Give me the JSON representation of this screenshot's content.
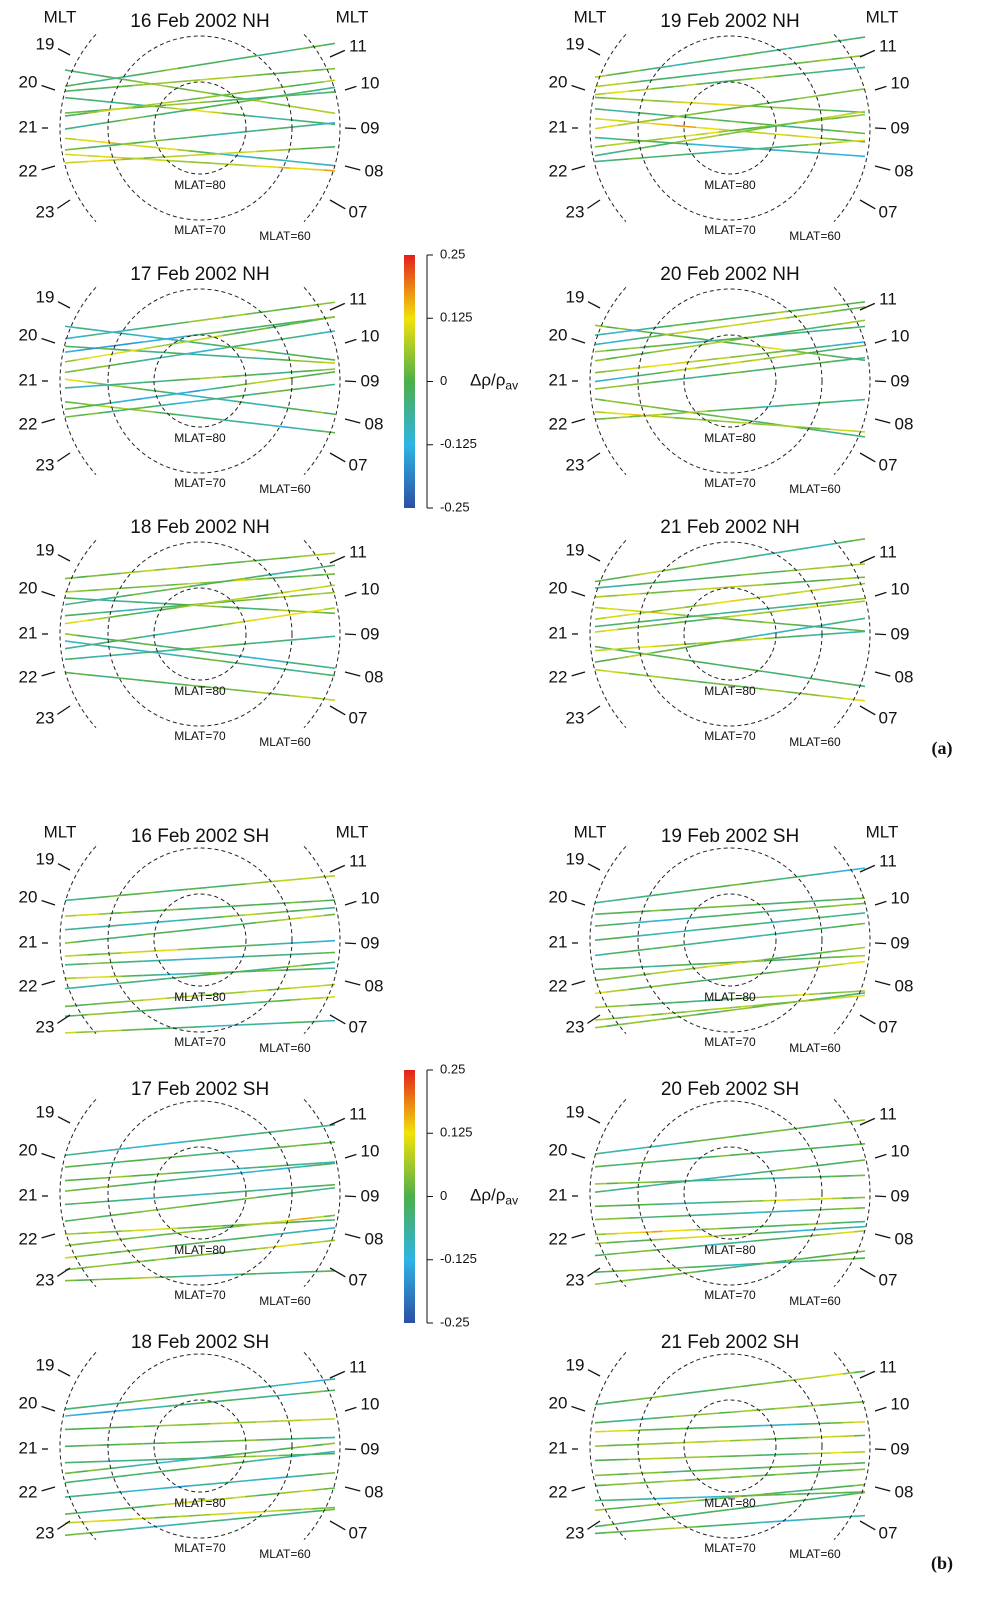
{
  "parts": [
    {
      "label": "(a)",
      "panels": [
        {
          "title": "16 Feb 2002 NH"
        },
        {
          "title": "19 Feb 2002 NH"
        },
        {
          "title": "17 Feb 2002 NH"
        },
        {
          "title": "20 Feb 2002 NH"
        },
        {
          "title": "18 Feb 2002 NH"
        },
        {
          "title": "21 Feb 2002 NH"
        }
      ]
    },
    {
      "label": "(b)",
      "panels": [
        {
          "title": "16 Feb 2002 SH"
        },
        {
          "title": "19 Feb 2002 SH"
        },
        {
          "title": "17 Feb 2002 SH"
        },
        {
          "title": "20 Feb 2002 SH"
        },
        {
          "title": "18 Feb 2002 SH"
        },
        {
          "title": "21 Feb 2002 SH"
        }
      ]
    }
  ],
  "mlt_label": "MLT",
  "left_hours": [
    "19",
    "20",
    "21",
    "22",
    "23"
  ],
  "right_hours": [
    "11",
    "10",
    "09",
    "08",
    "07"
  ],
  "mlat_labels": [
    "MLAT=80",
    "MLAT=70",
    "MLAT=60"
  ],
  "colorbar": {
    "label": "Δρ/ρ",
    "label_sub": "av",
    "range": [
      -0.25,
      0.25
    ],
    "ticks": [
      0.25,
      0.125,
      0,
      -0.125,
      -0.25
    ],
    "colors": [
      "#2c4fa3",
      "#2fb4e6",
      "#4daf4a",
      "#f2e20c",
      "#e3201c"
    ]
  }
}
